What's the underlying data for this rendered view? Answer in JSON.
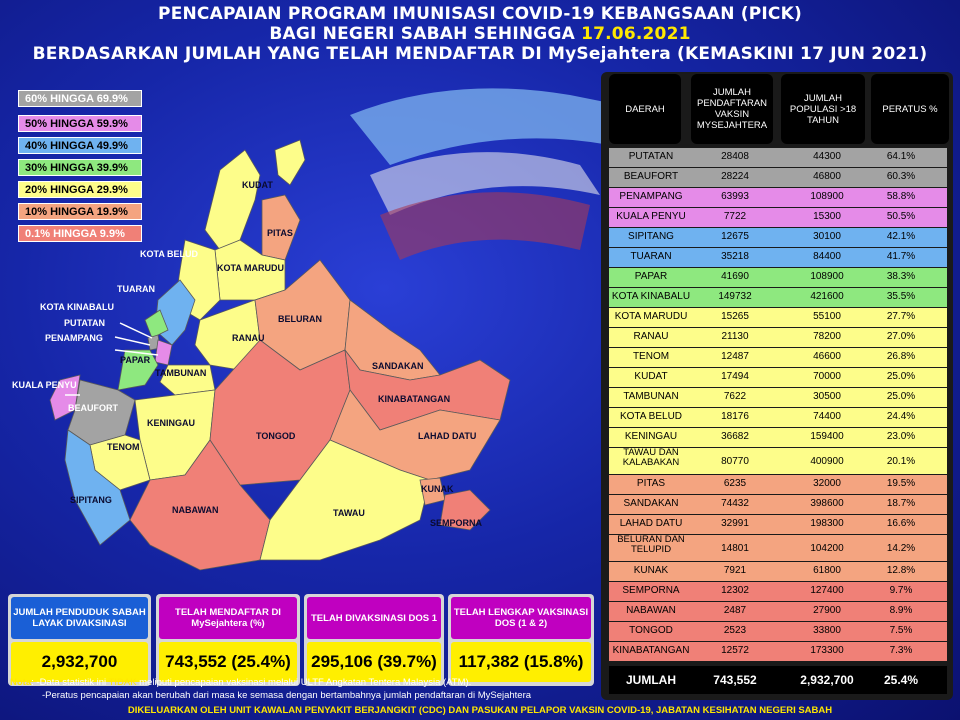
{
  "title": {
    "line1": "PENCAPAIAN PROGRAM IMUNISASI COVID-19 KEBANGSAAN (PICK)",
    "line2_prefix": "BAGI NEGERI SABAH SEHINGGA ",
    "line2_date": "17.06.2021",
    "line3": "BERDASARKAN JUMLAH YANG TELAH MENDAFTAR DI MySejahtera (KEMASKINI 17 JUN 2021)"
  },
  "colors": {
    "c60": "#a3a3a3",
    "c50": "#e58be8",
    "c40": "#6fb2f0",
    "c30": "#8ee87f",
    "c20": "#fdfd8a",
    "c10": "#f4a480",
    "c0": "#f08077"
  },
  "legend": [
    {
      "label": "60% HINGGA 69.9%"
    },
    {
      "label": "50% HINGGA 59.9%"
    },
    {
      "label": "40% HINGGA 49.9%"
    },
    {
      "label": "30% HINGGA 39.9%"
    },
    {
      "label": "20% HINGGA 29.9%"
    },
    {
      "label": "10% HINGGA 19.9%"
    },
    {
      "label": "0.1% HINGGA 9.9%"
    }
  ],
  "map_labels": {
    "kudat": "KUDAT",
    "pitas": "PITAS",
    "kota_belud": "KOTA BELUD",
    "kota_marudu": "KOTA MARUDU",
    "tuaran": "TUARAN",
    "kota_kinabalu": "KOTA KINABALU",
    "putatan": "PUTATAN",
    "penampang": "PENAMPANG",
    "ranau": "RANAU",
    "beluran": "BELURAN",
    "papar": "PAPAR",
    "tambunan": "TAMBUNAN",
    "sandakan": "SANDAKAN",
    "kuala_penyu": "KUALA PENYU",
    "beaufort": "BEAUFORT",
    "kinabatangan": "KINABATANGAN",
    "keningau": "KENINGAU",
    "tenom": "TENOM",
    "tongod": "TONGOD",
    "lahad_datu": "LAHAD DATU",
    "sipitang": "SIPITANG",
    "kunak": "KUNAK",
    "nabawan": "NABAWAN",
    "tawau": "TAWAU",
    "semporna": "SEMPORNA"
  },
  "table": {
    "headers": [
      "DAERAH",
      "JUMLAH PENDAFTARAN VAKSIN MYSEJAHTERA",
      "JUMLAH POPULASI >18 TAHUN",
      "PERATUS %"
    ],
    "rows": [
      {
        "d": "PUTATAN",
        "j": "28408",
        "p": "44300",
        "r": "64.1%",
        "band": "c60"
      },
      {
        "d": "BEAUFORT",
        "j": "28224",
        "p": "46800",
        "r": "60.3%",
        "band": "c60"
      },
      {
        "d": "PENAMPANG",
        "j": "63993",
        "p": "108900",
        "r": "58.8%",
        "band": "c50"
      },
      {
        "d": "KUALA PENYU",
        "j": "7722",
        "p": "15300",
        "r": "50.5%",
        "band": "c50"
      },
      {
        "d": "SIPITANG",
        "j": "12675",
        "p": "30100",
        "r": "42.1%",
        "band": "c40"
      },
      {
        "d": "TUARAN",
        "j": "35218",
        "p": "84400",
        "r": "41.7%",
        "band": "c40"
      },
      {
        "d": "PAPAR",
        "j": "41690",
        "p": "108900",
        "r": "38.3%",
        "band": "c30"
      },
      {
        "d": "KOTA KINABALU",
        "j": "149732",
        "p": "421600",
        "r": "35.5%",
        "band": "c30"
      },
      {
        "d": "KOTA MARUDU",
        "j": "15265",
        "p": "55100",
        "r": "27.7%",
        "band": "c20"
      },
      {
        "d": "RANAU",
        "j": "21130",
        "p": "78200",
        "r": "27.0%",
        "band": "c20"
      },
      {
        "d": "TENOM",
        "j": "12487",
        "p": "46600",
        "r": "26.8%",
        "band": "c20"
      },
      {
        "d": "KUDAT",
        "j": "17494",
        "p": "70000",
        "r": "25.0%",
        "band": "c20"
      },
      {
        "d": "TAMBUNAN",
        "j": "7622",
        "p": "30500",
        "r": "25.0%",
        "band": "c20"
      },
      {
        "d": "KOTA BELUD",
        "j": "18176",
        "p": "74400",
        "r": "24.4%",
        "band": "c20"
      },
      {
        "d": "KENINGAU",
        "j": "36682",
        "p": "159400",
        "r": "23.0%",
        "band": "c20"
      },
      {
        "d": "TAWAU DAN KALABAKAN",
        "j": "80770",
        "p": "400900",
        "r": "20.1%",
        "band": "c20"
      },
      {
        "d": "PITAS",
        "j": "6235",
        "p": "32000",
        "r": "19.5%",
        "band": "c10"
      },
      {
        "d": "SANDAKAN",
        "j": "74432",
        "p": "398600",
        "r": "18.7%",
        "band": "c10"
      },
      {
        "d": "LAHAD DATU",
        "j": "32991",
        "p": "198300",
        "r": "16.6%",
        "band": "c10"
      },
      {
        "d": "BELURAN DAN TELUPID",
        "j": "14801",
        "p": "104200",
        "r": "14.2%",
        "band": "c10"
      },
      {
        "d": "KUNAK",
        "j": "7921",
        "p": "61800",
        "r": "12.8%",
        "band": "c10"
      },
      {
        "d": "SEMPORNA",
        "j": "12302",
        "p": "127400",
        "r": "9.7%",
        "band": "c0"
      },
      {
        "d": "NABAWAN",
        "j": "2487",
        "p": "27900",
        "r": "8.9%",
        "band": "c0"
      },
      {
        "d": "TONGOD",
        "j": "2523",
        "p": "33800",
        "r": "7.5%",
        "band": "c0"
      },
      {
        "d": "KINABATANGAN",
        "j": "12572",
        "p": "173300",
        "r": "7.3%",
        "band": "c0"
      }
    ],
    "total": {
      "label": "JUMLAH",
      "j": "743,552",
      "p": "2,932,700",
      "r": "25.4%"
    }
  },
  "summary": [
    {
      "head": "JUMLAH PENDUDUK SABAH LAYAK DIVAKSINASI",
      "value": "2,932,700",
      "color": "#1a5fd6"
    },
    {
      "head": "TELAH MENDAFTAR DI MySejahtera (%)",
      "value": "743,552 (25.4%)",
      "color": "#c000c0"
    },
    {
      "head": "TELAH DIVAKSINASI DOS 1",
      "value": "295,106 (39.7%)",
      "color": "#c000c0"
    },
    {
      "head": "TELAH LENGKAP VAKSINASI DOS (1 & 2)",
      "value": "117,382 (15.8%)",
      "color": "#c000c0"
    }
  ],
  "nota": {
    "label": "Nota",
    "line1_a": ": -Data statistik ini ",
    "line1_b": "TIDAK",
    "line1_c": " meliputi pencapaian vaksinasi melalui ULTF Angkatan Tentera Malaysia (ATM).",
    "line2": "-Peratus pencapaian akan berubah dari masa ke semasa dengan bertambahnya jumlah pendaftaran di MySejahtera"
  },
  "footer": "DIKELUARKAN OLEH UNIT KAWALAN PENYAKIT BERJANGKIT (CDC) DAN PASUKAN PELAPOR VAKSIN COVID-19, JABATAN KESIHATAN NEGERI SABAH"
}
